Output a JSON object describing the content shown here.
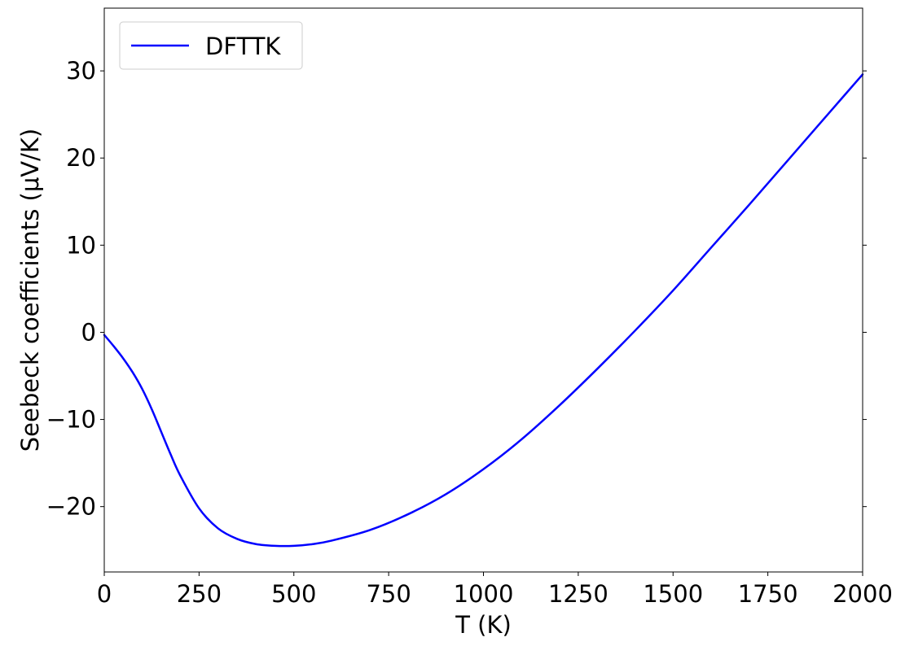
{
  "chart_data": {
    "type": "line",
    "xlabel": "T (K)",
    "ylabel": "Seebeck coefficients (μV/K)",
    "xlim": [
      0,
      2000
    ],
    "ylim": [
      -27.5,
      37.2
    ],
    "xticks": [
      0,
      250,
      500,
      750,
      1000,
      1250,
      1500,
      1750,
      2000
    ],
    "xtick_labels": [
      "0",
      "250",
      "500",
      "750",
      "1000",
      "1250",
      "1500",
      "1750",
      "2000"
    ],
    "yticks": [
      -20,
      -10,
      0,
      10,
      20,
      30
    ],
    "ytick_labels": [
      "−20",
      "−10",
      "0",
      "10",
      "20",
      "30"
    ],
    "grid": false,
    "legend_position": "top-left",
    "series": [
      {
        "name": "DFTTK",
        "color": "#0000ff",
        "x": [
          0,
          25,
          50,
          75,
          100,
          125,
          150,
          175,
          200,
          250,
          300,
          350,
          400,
          450,
          500,
          550,
          600,
          700,
          800,
          900,
          1000,
          1100,
          1200,
          1300,
          1400,
          1500,
          1600,
          1700,
          1800,
          1900,
          2000
        ],
        "y": [
          -0.3,
          -1.6,
          -3.0,
          -4.6,
          -6.5,
          -8.8,
          -11.4,
          -14.0,
          -16.4,
          -20.2,
          -22.5,
          -23.7,
          -24.3,
          -24.5,
          -24.5,
          -24.3,
          -23.9,
          -22.7,
          -20.9,
          -18.6,
          -15.7,
          -12.3,
          -8.4,
          -4.2,
          0.2,
          4.8,
          9.7,
          14.6,
          19.6,
          24.6,
          29.6
        ]
      }
    ]
  }
}
